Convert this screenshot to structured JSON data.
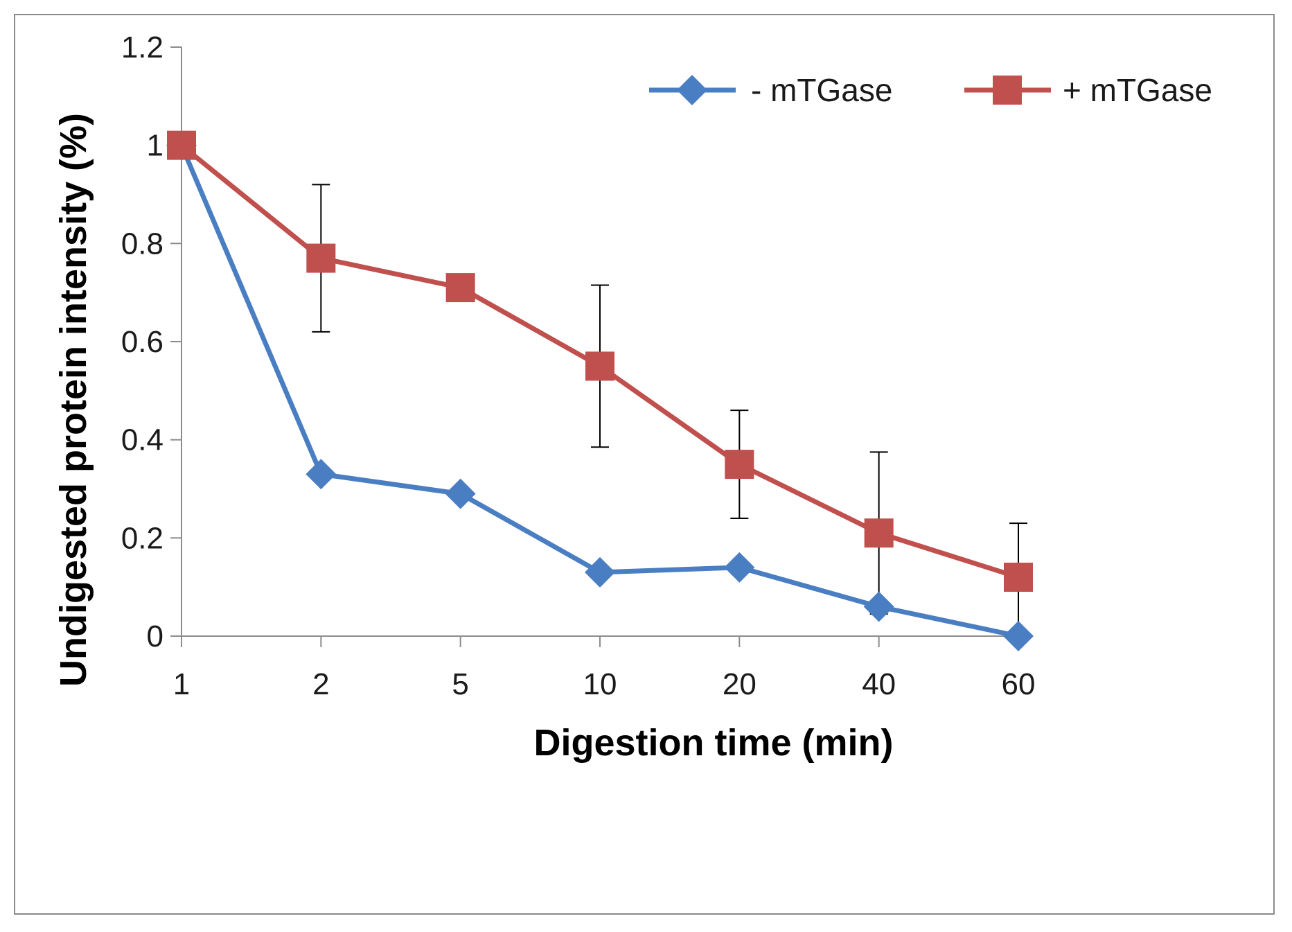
{
  "chart_data": {
    "type": "line",
    "title": "",
    "xlabel": "Digestion time (min)",
    "ylabel": "Undigested  protein intensity (%)",
    "categories": [
      "1",
      "2",
      "5",
      "10",
      "20",
      "40",
      "60"
    ],
    "ylim": [
      0,
      1.2
    ],
    "yticks": [
      "0",
      "0.2",
      "0.4",
      "0.6",
      "0.8",
      "1",
      "1.2"
    ],
    "grid": false,
    "legend_position": "top-right",
    "series": [
      {
        "name": "- mTGase",
        "marker": "diamond",
        "color": "#4a7ec2",
        "values": [
          1.0,
          0.33,
          0.29,
          0.13,
          0.14,
          0.06,
          0.0
        ]
      },
      {
        "name": "+ mTGase",
        "marker": "square",
        "color": "#c0504d",
        "values": [
          1.0,
          0.77,
          0.71,
          0.55,
          0.35,
          0.21,
          0.12
        ],
        "error": [
          0.0,
          0.15,
          0.0,
          0.165,
          0.11,
          0.165,
          0.11
        ]
      }
    ]
  }
}
